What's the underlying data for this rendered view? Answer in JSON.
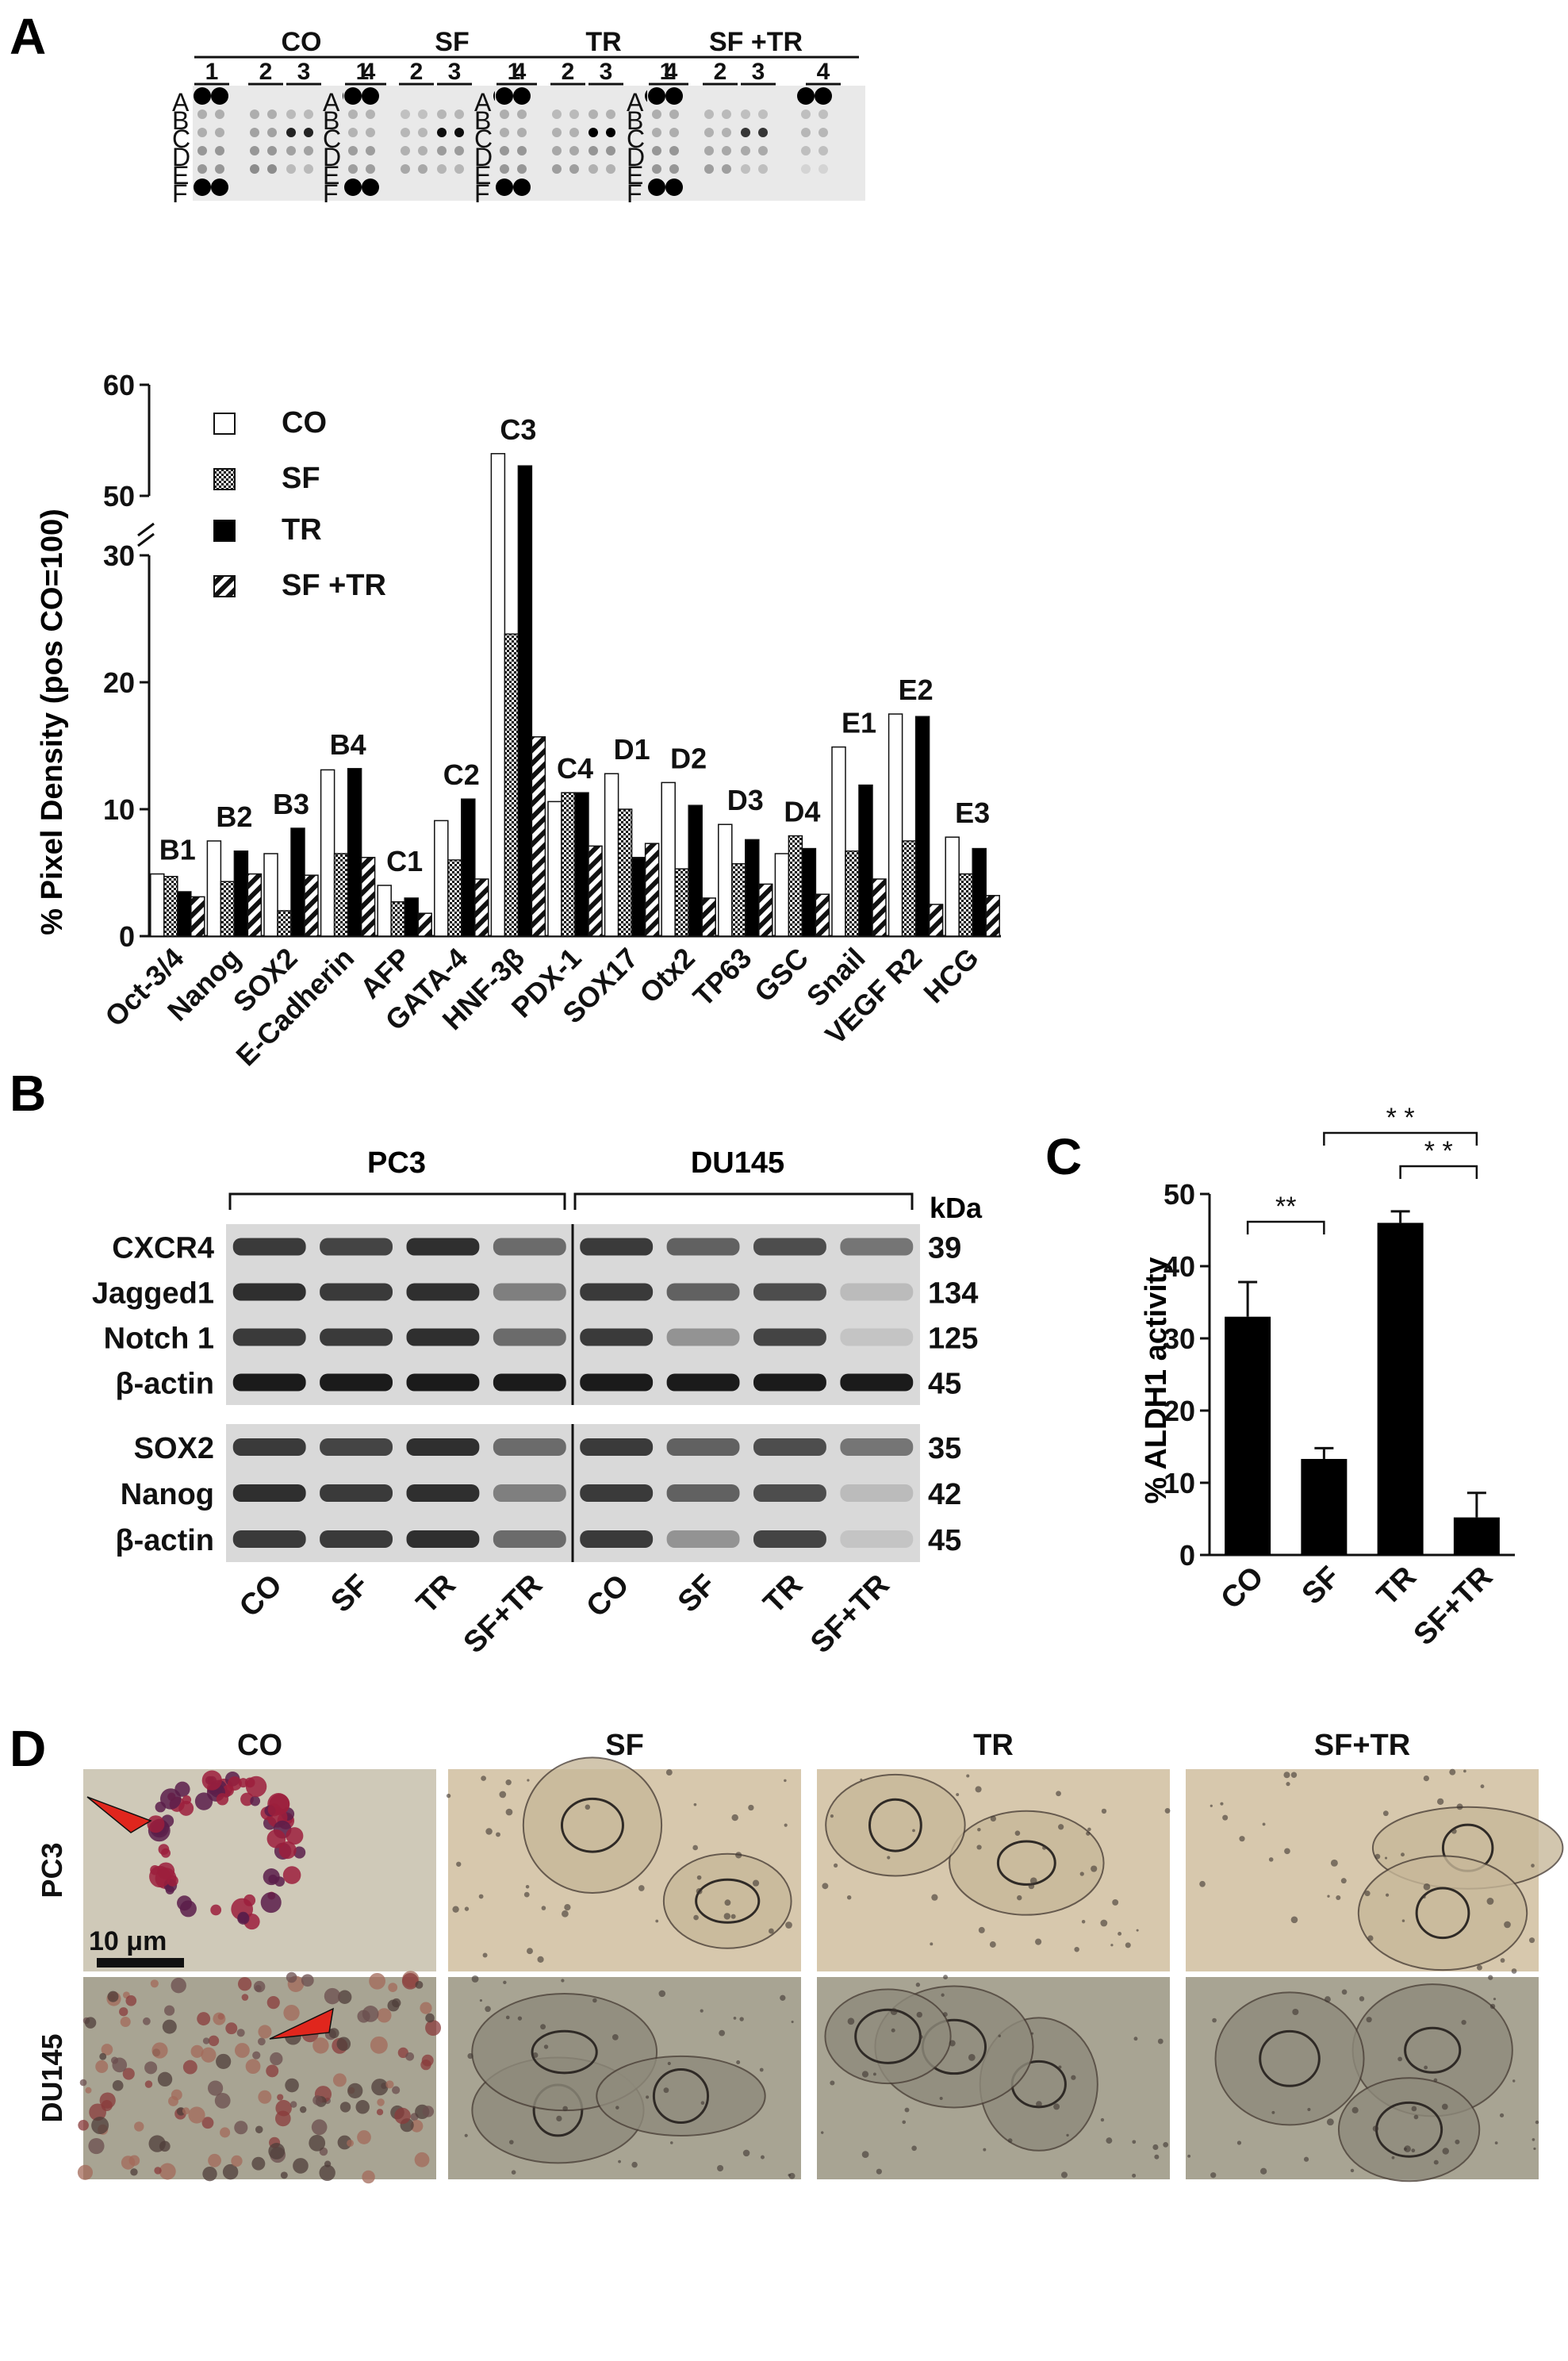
{
  "panels": {
    "a": "A",
    "b": "B",
    "c": "C",
    "d": "D"
  },
  "panel_a": {
    "array_groups": [
      "CO",
      "SF",
      "TR",
      "SF +TR"
    ],
    "column_labels": [
      "1",
      "2",
      "3",
      "4"
    ],
    "row_labels": [
      "A",
      "B",
      "C",
      "D",
      "E",
      "F"
    ],
    "ylabel": "% Pixel Density (pos CO=100)",
    "yticks": [
      "0",
      "10",
      "20",
      "30",
      "50",
      "60"
    ],
    "legend": [
      "CO",
      "SF",
      "TR",
      "SF +TR"
    ]
  },
  "panel_b": {
    "cell_lines": [
      "PC3",
      "DU145"
    ],
    "kda_label": "kDa",
    "blot1_rows": [
      {
        "label": "CXCR4",
        "kda": "39"
      },
      {
        "label": "Jagged1",
        "kda": "134"
      },
      {
        "label": "Notch 1",
        "kda": "125"
      },
      {
        "label": "β-actin",
        "kda": "45"
      }
    ],
    "blot2_rows": [
      {
        "label": "SOX2",
        "kda": "35"
      },
      {
        "label": "Nanog",
        "kda": "42"
      },
      {
        "label": "β-actin",
        "kda": "45"
      }
    ],
    "lanes": [
      "CO",
      "SF",
      "TR",
      "SF+TR",
      "CO",
      "SF",
      "TR",
      "SF+TR"
    ]
  },
  "panel_c": {
    "ylabel": "% ALDH1 activity",
    "sig_marks": [
      "**",
      "* *",
      "* *"
    ]
  },
  "panel_d": {
    "columns": [
      "CO",
      "SF",
      "TR",
      "SF+TR"
    ],
    "rows": [
      "PC3",
      "DU145"
    ],
    "scale_bar": "10 μm"
  },
  "chart_data": [
    {
      "type": "bar",
      "title": "",
      "xlabel": "",
      "ylabel": "% Pixel Density (pos CO=100)",
      "ylim": [
        0,
        60
      ],
      "axis_break": [
        30,
        50
      ],
      "yticks": [
        0,
        10,
        20,
        30,
        50,
        60
      ],
      "legend_position": "top-left",
      "categories": [
        "Oct-3/4",
        "Nanog",
        "SOX2",
        "E-Cadherin",
        "AFP",
        "GATA-4",
        "HNF-3β",
        "PDX-1",
        "SOX17",
        "Otx2",
        "TP63",
        "GSC",
        "Snail",
        "VEGF R2",
        "HCG"
      ],
      "spot_labels": [
        "B1",
        "B2",
        "B3",
        "B4",
        "C1",
        "C2",
        "C3",
        "C4",
        "D1",
        "D2",
        "D3",
        "D4",
        "E1",
        "E2",
        "E3"
      ],
      "series": [
        {
          "name": "CO",
          "values": [
            4.9,
            7.5,
            6.5,
            13.1,
            4.0,
            9.1,
            53.8,
            10.6,
            12.8,
            12.1,
            8.8,
            6.5,
            14.9,
            17.5,
            7.8
          ]
        },
        {
          "name": "SF",
          "values": [
            4.7,
            4.3,
            2.0,
            6.5,
            2.7,
            6.0,
            23.8,
            11.3,
            10.0,
            5.3,
            5.7,
            7.9,
            6.7,
            7.5,
            4.9
          ]
        },
        {
          "name": "TR",
          "values": [
            3.5,
            6.7,
            8.5,
            13.2,
            3.0,
            10.8,
            52.7,
            11.3,
            6.2,
            10.3,
            7.6,
            6.9,
            11.9,
            17.3,
            6.9
          ]
        },
        {
          "name": "SF +TR",
          "values": [
            3.1,
            4.9,
            4.8,
            6.2,
            1.8,
            4.5,
            15.7,
            7.1,
            7.3,
            3.0,
            4.1,
            3.3,
            4.5,
            2.5,
            3.2
          ]
        }
      ],
      "patterns": {
        "CO": "white",
        "SF": "checkered",
        "TR": "black",
        "SF +TR": "diagonal-stripes"
      }
    },
    {
      "type": "bar",
      "title": "",
      "xlabel": "",
      "ylabel": "% ALDH1 activity",
      "ylim": [
        0,
        50
      ],
      "yticks": [
        0,
        10,
        20,
        30,
        40,
        50
      ],
      "categories": [
        "CO",
        "SF",
        "TR",
        "SF+TR"
      ],
      "values": [
        33,
        13.3,
        46,
        5.2
      ],
      "errors": [
        4.8,
        1.5,
        1.6,
        3.4
      ],
      "significance": [
        {
          "between": [
            "CO",
            "SF"
          ],
          "label": "**"
        },
        {
          "between": [
            "SF",
            "SF+TR"
          ],
          "label": "* *"
        },
        {
          "between": [
            "TR",
            "SF+TR"
          ],
          "label": "* *"
        }
      ],
      "bar_color": "#000000"
    }
  ]
}
